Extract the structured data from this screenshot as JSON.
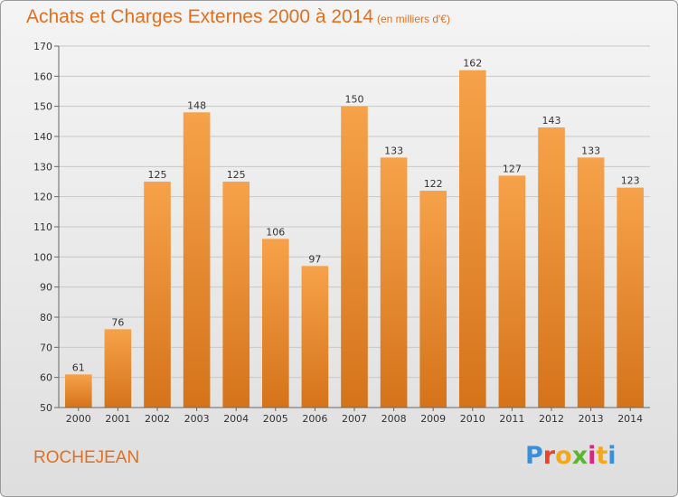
{
  "header": {
    "title": "Achats et Charges Externes 2000 à 2014",
    "subtitle": "(en milliers d'€)"
  },
  "footer": {
    "commune": "ROCHEJEAN",
    "logo_letters": [
      "P",
      "r",
      "o",
      "x",
      "i",
      "t",
      "i"
    ]
  },
  "colors": {
    "title": "#e07020",
    "bar_top": "#f6a24a",
    "bar_bottom": "#d5731a",
    "grid": "#c8c8c8"
  },
  "chart_data": {
    "type": "bar",
    "title": "Achats et Charges Externes 2000 à 2014",
    "subtitle": "(en milliers d'€)",
    "categories": [
      "2000",
      "2001",
      "2002",
      "2003",
      "2004",
      "2005",
      "2006",
      "2007",
      "2008",
      "2009",
      "2010",
      "2011",
      "2012",
      "2013",
      "2014"
    ],
    "values": [
      61,
      76,
      125,
      148,
      125,
      106,
      97,
      150,
      133,
      122,
      162,
      127,
      143,
      133,
      123
    ],
    "ylim": [
      50,
      170
    ],
    "yticks": [
      50,
      60,
      70,
      80,
      90,
      100,
      110,
      120,
      130,
      140,
      150,
      160,
      170
    ],
    "grid": true,
    "legend": "none"
  }
}
